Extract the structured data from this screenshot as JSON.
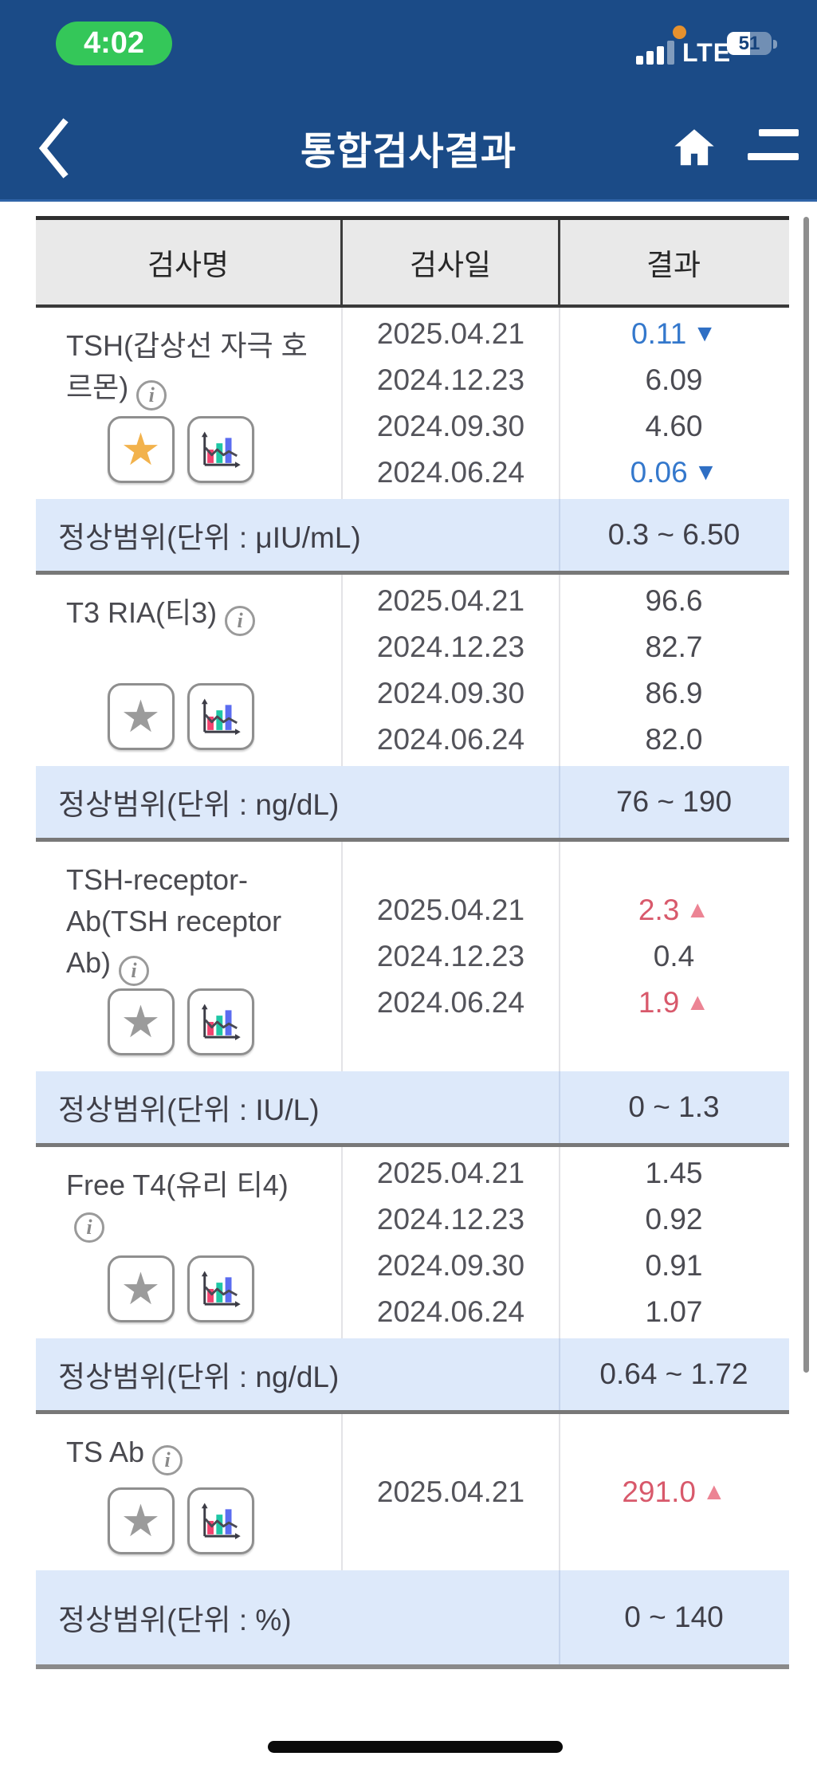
{
  "status_bar": {
    "time": "4:02",
    "network": "LTE",
    "battery_level": "51"
  },
  "header": {
    "title": "통합검사결과"
  },
  "icons": {
    "star": "★",
    "arrow_up": "▲",
    "arrow_down": "▼",
    "info": "i"
  },
  "colors": {
    "navy": "#1b4b87",
    "green": "#34c759",
    "low_blue": "#3478cc",
    "high_red": "#d8596b",
    "range_bg": "#dde9fa",
    "favorite_yellow": "#f2b24c"
  },
  "table": {
    "columns": [
      "검사명",
      "검사일",
      "결과"
    ],
    "sections": [
      {
        "name": "TSH(갑상선 자극 호르몬)",
        "favorite": true,
        "results": [
          {
            "date": "2025.04.21",
            "value": "0.11",
            "flag": "low"
          },
          {
            "date": "2024.12.23",
            "value": "6.09",
            "flag": null
          },
          {
            "date": "2024.09.30",
            "value": "4.60",
            "flag": null
          },
          {
            "date": "2024.06.24",
            "value": "0.06",
            "flag": "low"
          }
        ],
        "range_label": "정상범위(단위 : μIU/mL)",
        "range": "0.3 ~ 6.50"
      },
      {
        "name": "T3 RIA(티3)",
        "favorite": false,
        "results": [
          {
            "date": "2025.04.21",
            "value": "96.6",
            "flag": null
          },
          {
            "date": "2024.12.23",
            "value": "82.7",
            "flag": null
          },
          {
            "date": "2024.09.30",
            "value": "86.9",
            "flag": null
          },
          {
            "date": "2024.06.24",
            "value": "82.0",
            "flag": null
          }
        ],
        "range_label": "정상범위(단위 : ng/dL)",
        "range": "76 ~ 190"
      },
      {
        "name": "TSH-receptor-Ab(TSH receptor Ab)",
        "favorite": false,
        "results": [
          {
            "date": "2025.04.21",
            "value": "2.3",
            "flag": "high"
          },
          {
            "date": "2024.12.23",
            "value": "0.4",
            "flag": null
          },
          {
            "date": "2024.06.24",
            "value": "1.9",
            "flag": "high"
          }
        ],
        "range_label": "정상범위(단위 : IU/L)",
        "range": "0 ~ 1.3"
      },
      {
        "name": "Free T4(유리 티4)",
        "favorite": false,
        "info_on_new_line": true,
        "results": [
          {
            "date": "2025.04.21",
            "value": "1.45",
            "flag": null
          },
          {
            "date": "2024.12.23",
            "value": "0.92",
            "flag": null
          },
          {
            "date": "2024.09.30",
            "value": "0.91",
            "flag": null
          },
          {
            "date": "2024.06.24",
            "value": "1.07",
            "flag": null
          }
        ],
        "range_label": "정상범위(단위 : ng/dL)",
        "range": "0.64 ~ 1.72"
      },
      {
        "name": "TS Ab",
        "favorite": false,
        "results": [
          {
            "date": "2025.04.21",
            "value": "291.0",
            "flag": "high"
          }
        ],
        "range_label": "정상범위(단위 : %)",
        "range": "0 ~ 140"
      }
    ]
  }
}
